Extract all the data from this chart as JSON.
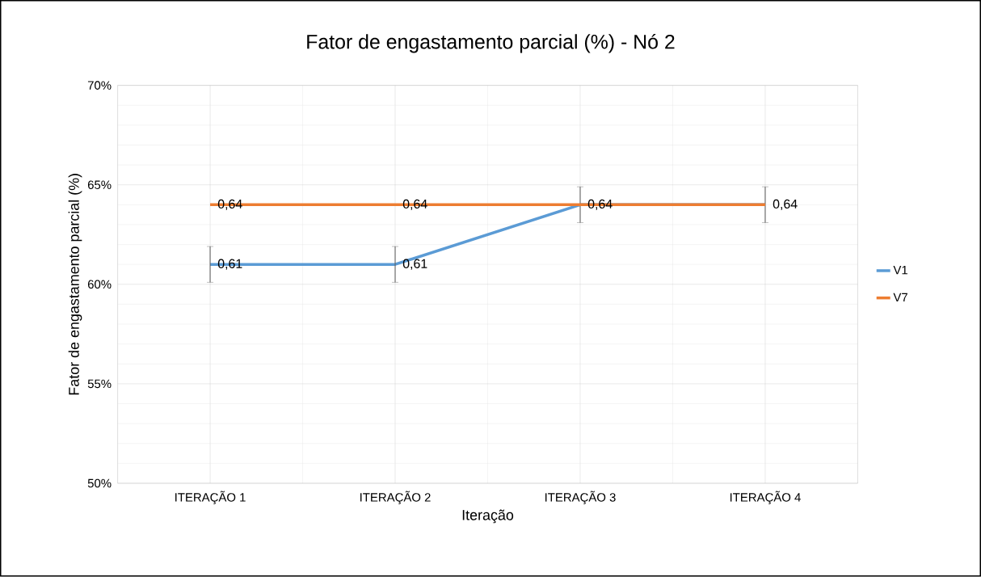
{
  "chart_data": {
    "type": "line",
    "title": "Fator de engastamento parcial (%) - Nó 2",
    "xlabel": "Iteração",
    "ylabel": "Fator de engastamento parcial (%)",
    "categories": [
      "ITERAÇÃO 1",
      "ITERAÇÃO 2",
      "ITERAÇÃO 3",
      "ITERAÇÃO 4"
    ],
    "series": [
      {
        "name": "V1",
        "color": "#5b9bd5",
        "values": [
          0.61,
          0.61,
          0.64,
          0.64
        ],
        "errors": [
          0.009,
          0.009,
          0.009,
          0.009
        ],
        "value_labels": [
          "0,61",
          "0,61",
          null,
          null
        ]
      },
      {
        "name": "V7",
        "color": "#ed7d31",
        "values": [
          0.64,
          0.64,
          0.64,
          0.64
        ],
        "value_labels": [
          "0,64",
          "0,64",
          "0,64",
          "0,64"
        ]
      }
    ],
    "ylim": [
      0.5,
      0.7
    ],
    "yticks": [
      {
        "value": 0.5,
        "label": "50%"
      },
      {
        "value": 0.55,
        "label": "55%"
      },
      {
        "value": 0.6,
        "label": "60%"
      },
      {
        "value": 0.65,
        "label": "65%"
      },
      {
        "value": 0.7,
        "label": "70%"
      }
    ],
    "grid": true,
    "legend": "right",
    "marker": "none",
    "line_style": "solid"
  }
}
